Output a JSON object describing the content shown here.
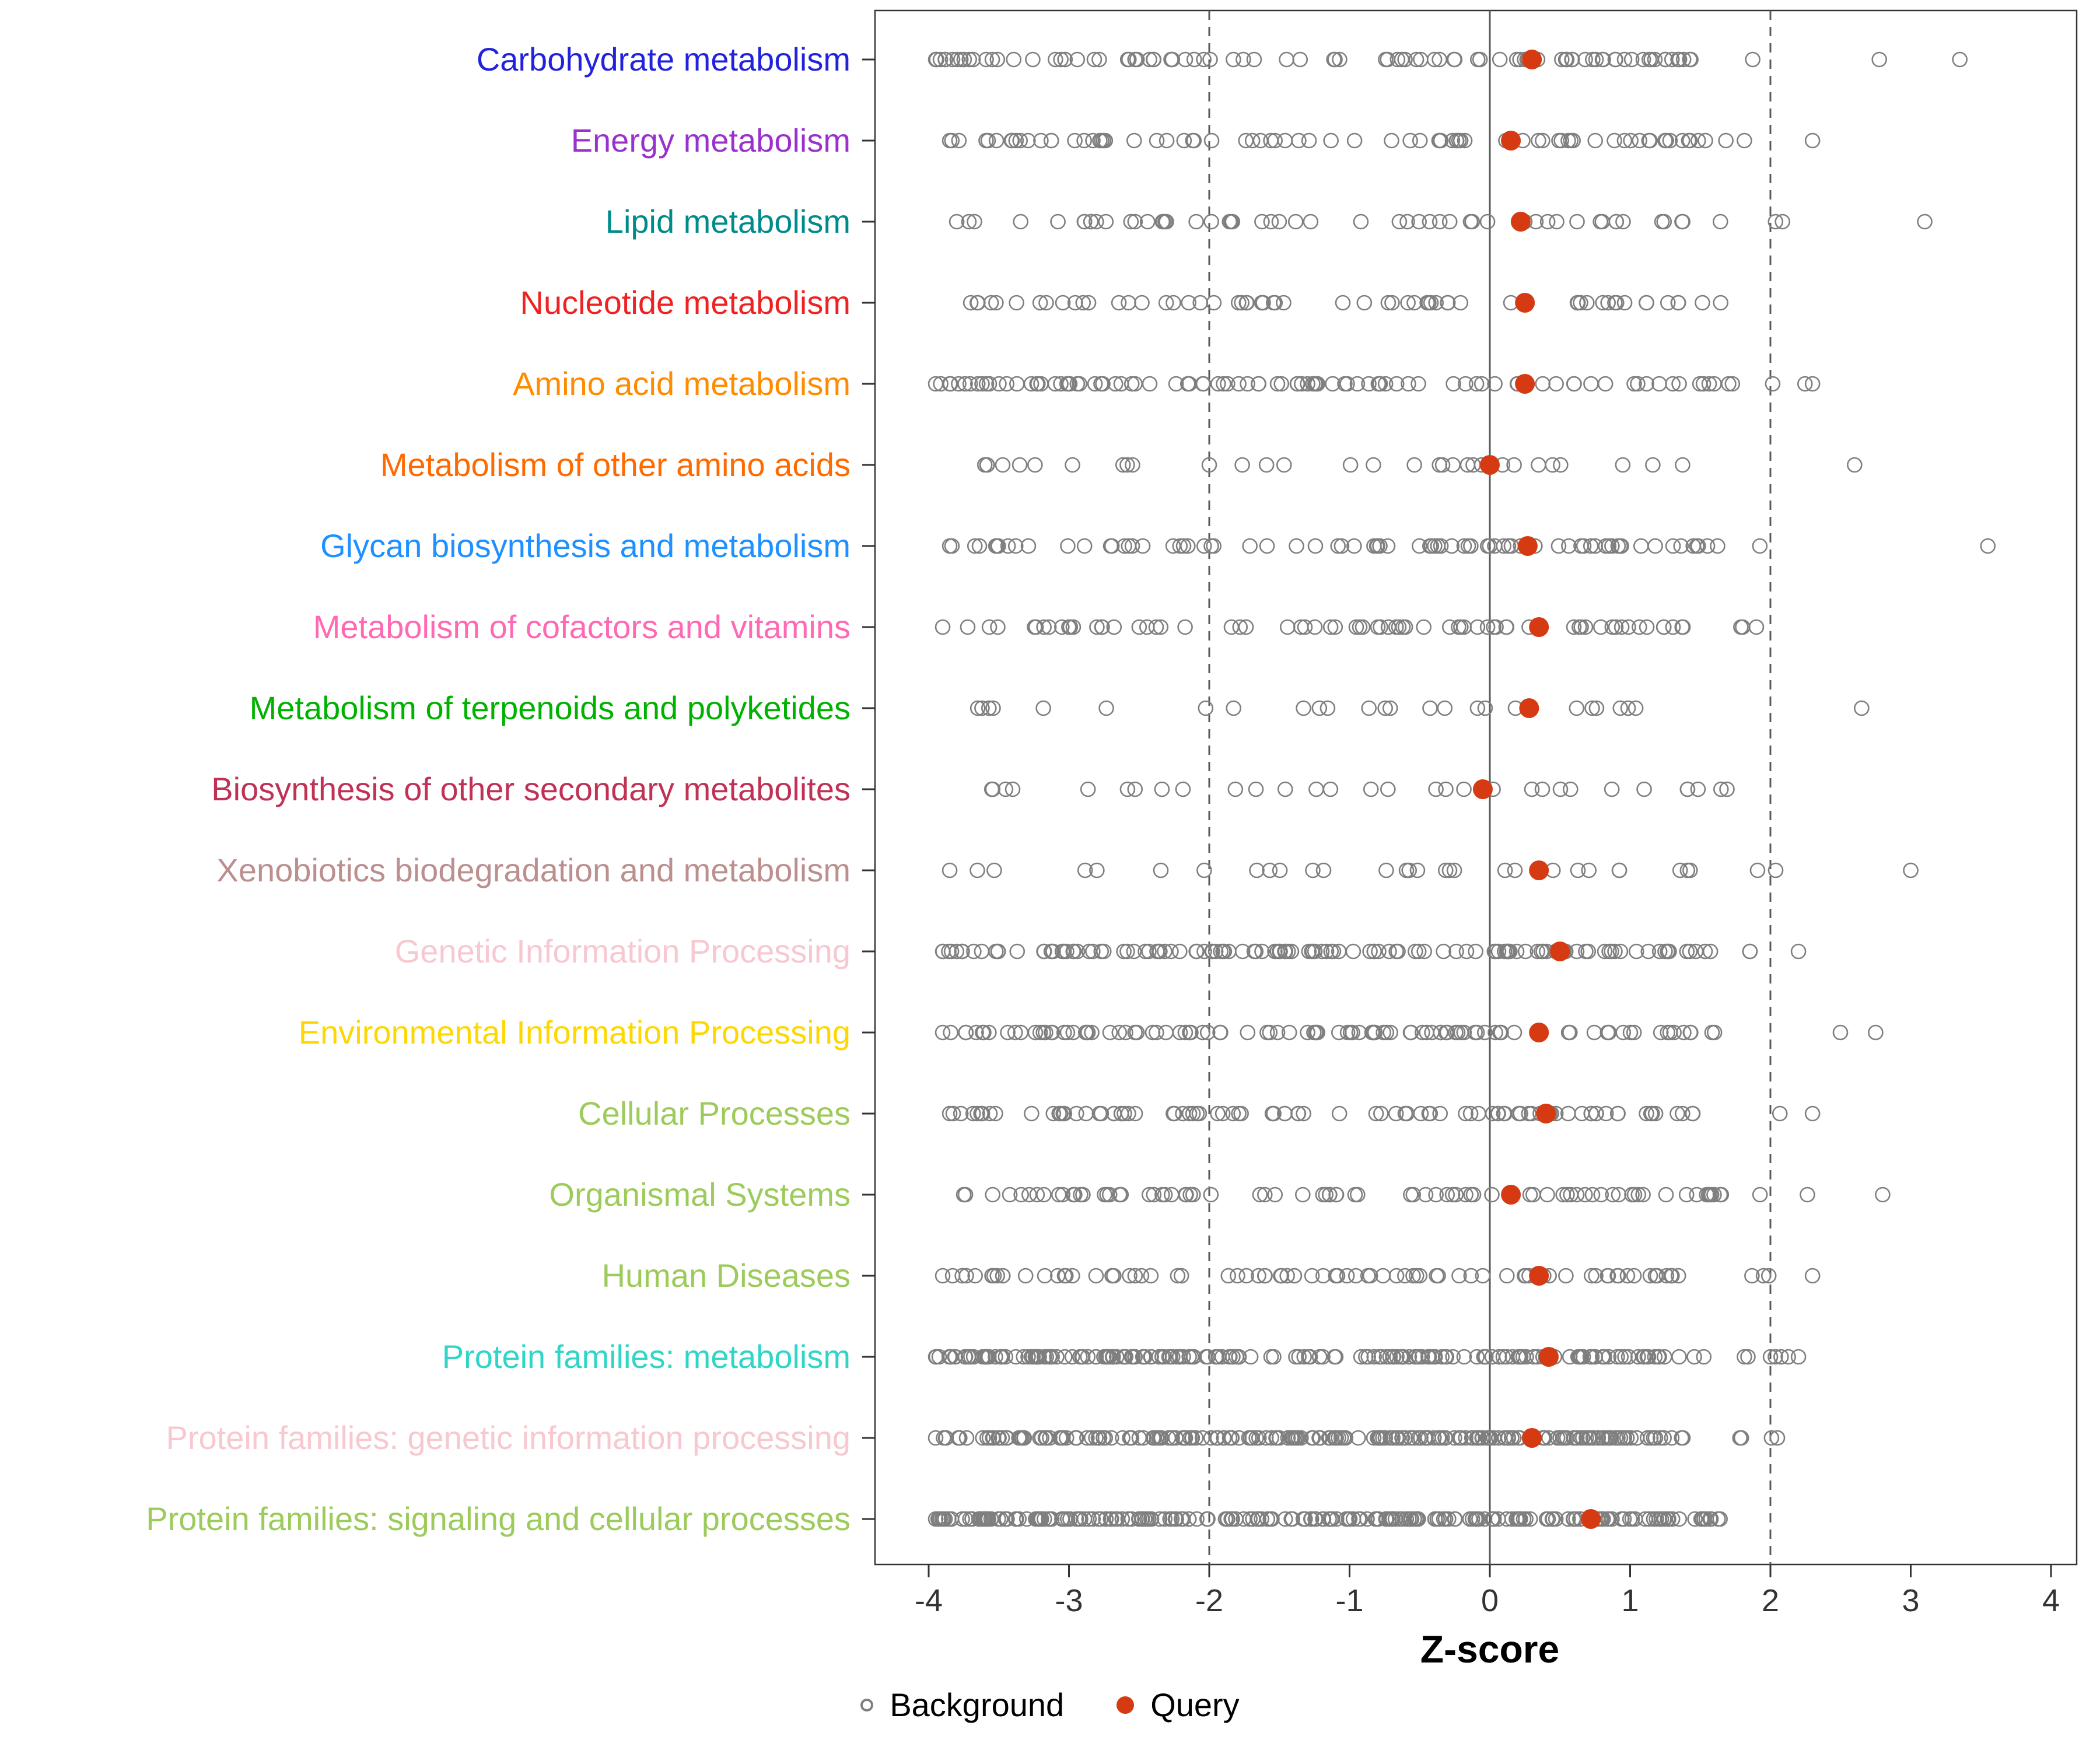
{
  "chart_data": {
    "type": "scatter",
    "title": "",
    "xlabel": "Z-score",
    "ylabel": "",
    "xlim": [
      -4.4,
      4.2
    ],
    "x_ticks": [
      -4,
      -3,
      -2,
      -1,
      0,
      1,
      2,
      3,
      4
    ],
    "grid": "off",
    "reference_lines": {
      "dashed": [
        -2,
        2
      ],
      "solid": [
        0
      ],
      "line_color": "#595959"
    },
    "legend_position": "bottom",
    "legend": [
      {
        "label": "Background",
        "marker": "open-circle",
        "color": "#7f7f7f"
      },
      {
        "label": "Query",
        "marker": "filled-circle",
        "color": "#D63A12"
      }
    ],
    "background_point_color": "#7f7f7f",
    "query_point_color": "#D63A12",
    "categories": [
      {
        "label": "Carbohydrate metabolism",
        "color": "#2222DD",
        "query_z": 0.3,
        "background": {
          "count": 95,
          "min": -3.95,
          "main_max": 1.55,
          "outlier_max": 3.35
        }
      },
      {
        "label": "Energy metabolism",
        "color": "#9932CC",
        "query_z": 0.15,
        "background": {
          "count": 75,
          "min": -3.85,
          "main_max": 1.55,
          "outlier_max": 2.3
        }
      },
      {
        "label": "Lipid metabolism",
        "color": "#008B8B",
        "query_z": 0.22,
        "background": {
          "count": 55,
          "min": -3.8,
          "main_max": 1.45,
          "outlier_max": 3.1
        }
      },
      {
        "label": "Nucleotide metabolism",
        "color": "#EE2222",
        "query_z": 0.25,
        "background": {
          "count": 60,
          "min": -3.7,
          "main_max": 1.9,
          "outlier_max": 1.9
        }
      },
      {
        "label": "Amino acid metabolism",
        "color": "#FF8C00",
        "query_z": 0.25,
        "background": {
          "count": 95,
          "min": -3.95,
          "main_max": 1.6,
          "outlier_max": 2.3
        }
      },
      {
        "label": "Metabolism of other amino acids",
        "color": "#FF6A00",
        "query_z": 0.0,
        "background": {
          "count": 30,
          "min": -3.6,
          "main_max": 1.4,
          "outlier_max": 2.6
        }
      },
      {
        "label": "Glycan biosynthesis and metabolism",
        "color": "#1E90FF",
        "query_z": 0.27,
        "background": {
          "count": 80,
          "min": -3.85,
          "main_max": 1.6,
          "outlier_max": 3.55
        }
      },
      {
        "label": "Metabolism of cofactors and vitamins",
        "color": "#FF69B4",
        "query_z": 0.35,
        "background": {
          "count": 70,
          "min": -3.9,
          "main_max": 1.45,
          "outlier_max": 1.9
        }
      },
      {
        "label": "Metabolism of terpenoids and polyketides",
        "color": "#00B200",
        "query_z": 0.28,
        "background": {
          "count": 24,
          "min": -3.65,
          "main_max": 1.5,
          "outlier_max": 2.65
        }
      },
      {
        "label": "Biosynthesis of other secondary metabolites",
        "color": "#C03255",
        "query_z": -0.05,
        "background": {
          "count": 30,
          "min": -3.55,
          "main_max": 1.7,
          "outlier_max": 1.7
        }
      },
      {
        "label": "Xenobiotics biodegradation and metabolism",
        "color": "#BC8F8F",
        "query_z": 0.35,
        "background": {
          "count": 30,
          "min": -3.85,
          "main_max": 1.6,
          "outlier_max": 3.0
        }
      },
      {
        "label": "Genetic Information Processing",
        "color": "#F7C8CF",
        "query_z": 0.5,
        "background": {
          "count": 125,
          "min": -3.9,
          "main_max": 1.55,
          "outlier_max": 2.2
        }
      },
      {
        "label": "Environmental Information Processing",
        "color": "#FFD700",
        "query_z": 0.35,
        "background": {
          "count": 100,
          "min": -3.9,
          "main_max": 1.45,
          "outlier_max": 2.75
        }
      },
      {
        "label": "Cellular Processes",
        "color": "#9CCB5B",
        "query_z": 0.4,
        "background": {
          "count": 90,
          "min": -3.85,
          "main_max": 1.45,
          "outlier_max": 2.3
        }
      },
      {
        "label": "Organismal Systems",
        "color": "#9CCB5B",
        "query_z": 0.15,
        "background": {
          "count": 80,
          "min": -3.75,
          "main_max": 1.65,
          "outlier_max": 2.8
        }
      },
      {
        "label": "Human Diseases",
        "color": "#9CCB5B",
        "query_z": 0.35,
        "background": {
          "count": 80,
          "min": -3.9,
          "main_max": 1.45,
          "outlier_max": 2.3
        }
      },
      {
        "label": "Protein families: metabolism",
        "color": "#30D5C8",
        "query_z": 0.42,
        "background": {
          "count": 210,
          "min": -3.95,
          "main_max": 1.3,
          "outlier_max": 2.2
        }
      },
      {
        "label": "Protein families: genetic information processing",
        "color": "#F7C8CF",
        "query_z": 0.3,
        "background": {
          "count": 230,
          "min": -3.95,
          "main_max": 1.25,
          "outlier_max": 2.05
        }
      },
      {
        "label": "Protein families: signaling and cellular processes",
        "color": "#9CCB5B",
        "query_z": 0.72,
        "background": {
          "count": 240,
          "min": -3.95,
          "main_max": 1.4,
          "outlier_max": 1.65
        }
      }
    ]
  }
}
